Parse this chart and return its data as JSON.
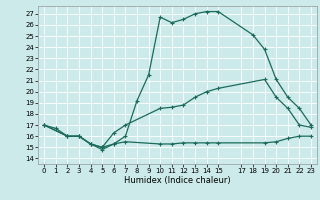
{
  "xlabel": "Humidex (Indice chaleur)",
  "bg_color": "#cceaea",
  "grid_color": "#ffffff",
  "line_color": "#1a6b5a",
  "xlim": [
    -0.5,
    23.5
  ],
  "ylim": [
    13.5,
    27.7
  ],
  "xticks": [
    0,
    1,
    2,
    3,
    4,
    5,
    6,
    7,
    8,
    9,
    10,
    11,
    12,
    13,
    14,
    15,
    17,
    18,
    19,
    20,
    21,
    22,
    23
  ],
  "yticks": [
    14,
    15,
    16,
    17,
    18,
    19,
    20,
    21,
    22,
    23,
    24,
    25,
    26,
    27
  ],
  "series1_x": [
    0,
    1,
    2,
    3,
    4,
    5,
    6,
    7,
    8,
    9,
    10,
    11,
    12,
    13,
    14,
    15,
    18,
    19,
    20,
    21,
    22,
    23
  ],
  "series1_y": [
    17,
    16.7,
    16.0,
    16.0,
    15.3,
    14.8,
    15.3,
    16.0,
    19.2,
    21.5,
    26.7,
    26.2,
    26.5,
    27.0,
    27.2,
    27.2,
    25.1,
    23.8,
    21.1,
    19.5,
    18.5,
    17.0
  ],
  "series2_x": [
    0,
    2,
    3,
    4,
    5,
    6,
    7,
    10,
    11,
    12,
    13,
    14,
    15,
    19,
    20,
    21,
    22,
    23
  ],
  "series2_y": [
    17,
    16.0,
    16.0,
    15.3,
    15.0,
    16.3,
    17.0,
    18.5,
    18.6,
    18.8,
    19.5,
    20.0,
    20.3,
    21.1,
    19.5,
    18.5,
    17.0,
    16.8
  ],
  "series3_x": [
    0,
    2,
    3,
    4,
    5,
    6,
    7,
    10,
    11,
    12,
    13,
    14,
    15,
    19,
    20,
    21,
    22,
    23
  ],
  "series3_y": [
    17,
    16.0,
    16.0,
    15.3,
    15.0,
    15.3,
    15.5,
    15.3,
    15.3,
    15.4,
    15.4,
    15.4,
    15.4,
    15.4,
    15.5,
    15.8,
    16.0,
    16.0
  ]
}
